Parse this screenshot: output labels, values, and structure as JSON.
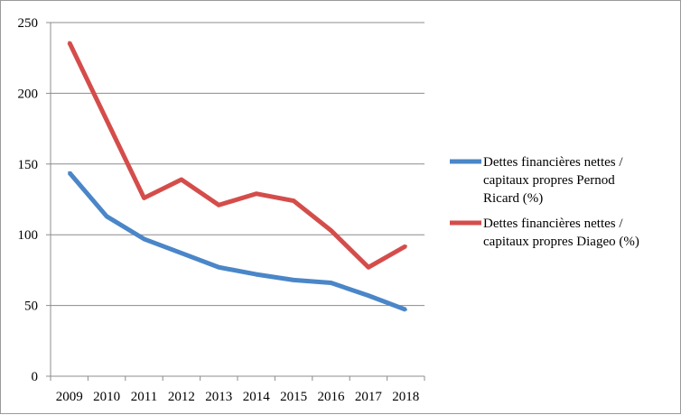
{
  "chart_data": {
    "type": "line",
    "title": "",
    "xlabel": "",
    "ylabel": "",
    "categories": [
      "2009",
      "2010",
      "2011",
      "2012",
      "2013",
      "2014",
      "2015",
      "2016",
      "2017",
      "2018"
    ],
    "ylim": [
      0,
      250
    ],
    "yticks": [
      0,
      50,
      100,
      150,
      200,
      250
    ],
    "grid": true,
    "legend_position": "right",
    "series": [
      {
        "name": "Dettes financières nettes / capitaux propres Pernod Ricard (%)",
        "legend_lines": [
          "Dettes financières nettes /",
          "capitaux propres Pernod",
          "Ricard (%)"
        ],
        "color": "#4a86c8",
        "values": [
          144,
          113,
          97,
          87,
          77,
          72,
          68,
          66,
          57,
          47
        ]
      },
      {
        "name": "Dettes financières nettes / capitaux propres Diageo (%)",
        "legend_lines": [
          "Dettes financières nettes /",
          "capitaux propres Diageo (%)"
        ],
        "color": "#d44d4b",
        "values": [
          236,
          181,
          126,
          139,
          121,
          129,
          124,
          103,
          77,
          92
        ]
      }
    ]
  }
}
